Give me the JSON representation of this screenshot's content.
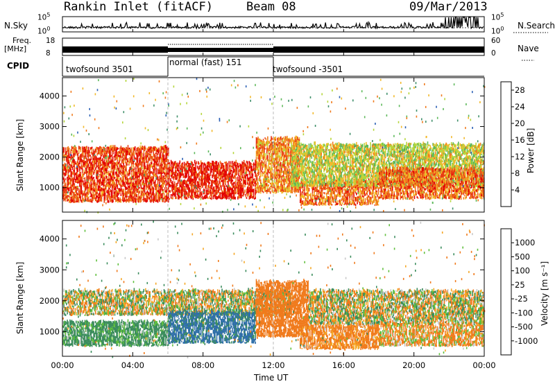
{
  "header": {
    "title": "Rankin Inlet (fitACF)",
    "beam": "Beam 08",
    "date": "09/Mar/2013"
  },
  "noise_panel": {
    "left_label": "N.Sky",
    "right_label": "N.Search",
    "left_ticks": [
      "10^5",
      "10^0"
    ],
    "right_ticks": [
      "10^5",
      "10^0"
    ]
  },
  "freq_panel": {
    "left_label_1": "Freq.",
    "left_label_2": "[MHz]",
    "right_label": "Nave",
    "left_ticks": [
      "18",
      "8"
    ],
    "right_ticks": [
      "60",
      "0"
    ]
  },
  "cpid_panel": {
    "label": "CPID",
    "segments": [
      {
        "start_hour": 0,
        "end_hour": 6,
        "text": "twofsound 3501"
      },
      {
        "start_hour": 6,
        "end_hour": 12,
        "text": "normal (fast) 151"
      },
      {
        "start_hour": 12,
        "end_hour": 24,
        "text": "twofsound -3501"
      }
    ]
  },
  "chart_data": [
    {
      "type": "heatmap",
      "title": "",
      "xlabel": "Time UT",
      "ylabel": "Slant Range [km]",
      "xlim": [
        0,
        24
      ],
      "ylim": [
        200,
        4600
      ],
      "x_ticks": [
        "00:00",
        "04:00",
        "08:00",
        "12:00",
        "16:00",
        "20:00",
        "00:00"
      ],
      "y_ticks": [
        1000,
        2000,
        3000,
        4000
      ],
      "colorbar": {
        "label": "Power [dB]",
        "ticks": [
          4,
          8,
          12,
          16,
          20,
          24,
          28
        ],
        "range": [
          0,
          30
        ],
        "colors": [
          "#0022ff",
          "#2a5fb5",
          "#3f8f6a",
          "#5db85a",
          "#b5d63a",
          "#f2b829",
          "#f07a1c",
          "#e83a14",
          "#e30000"
        ]
      },
      "echo_regions": [
        {
          "t_start": 0.0,
          "t_end": 6.0,
          "range_low": 500,
          "range_high": 2300,
          "dominant_dB": 26
        },
        {
          "t_start": 6.0,
          "t_end": 11.0,
          "range_low": 600,
          "range_high": 1800,
          "dominant_dB": 28
        },
        {
          "t_start": 11.0,
          "t_end": 13.5,
          "range_low": 800,
          "range_high": 2600,
          "dominant_dB": 22
        },
        {
          "t_start": 13.5,
          "t_end": 18.0,
          "range_low": 400,
          "range_high": 1200,
          "dominant_dB": 24
        },
        {
          "t_start": 13.0,
          "t_end": 24.0,
          "range_low": 1000,
          "range_high": 2400,
          "dominant_dB": 16
        },
        {
          "t_start": 18.0,
          "t_end": 24.0,
          "range_low": 600,
          "range_high": 1600,
          "dominant_dB": 24
        }
      ]
    },
    {
      "type": "heatmap",
      "title": "",
      "xlabel": "Time UT",
      "ylabel": "Slant Range [km]",
      "xlim": [
        0,
        24
      ],
      "ylim": [
        200,
        4600
      ],
      "x_ticks": [
        "00:00",
        "04:00",
        "08:00",
        "12:00",
        "16:00",
        "20:00",
        "00:00"
      ],
      "y_ticks": [
        1000,
        2000,
        3000,
        4000
      ],
      "colorbar": {
        "label": "Velocity [m s⁻¹]",
        "ticks": [
          1000,
          500,
          100,
          25,
          -25,
          -100,
          -500,
          -1000
        ],
        "colors": [
          "#1a3fc8",
          "#2f6fa8",
          "#3a8c5c",
          "#5fbf3c",
          "#c8c8c8",
          "#f5a623",
          "#f07a1c",
          "#e83a14",
          "#e30000"
        ]
      },
      "echo_regions": [
        {
          "t_start": 0.0,
          "t_end": 6.0,
          "range_low": 500,
          "range_high": 1300,
          "dominant_velocity": 200
        },
        {
          "t_start": 0.0,
          "t_end": 13.0,
          "range_low": 1500,
          "range_high": 2300,
          "dominant_velocity": 0
        },
        {
          "t_start": 6.0,
          "t_end": 11.0,
          "range_low": 600,
          "range_high": 1600,
          "dominant_velocity": 600
        },
        {
          "t_start": 11.0,
          "t_end": 14.0,
          "range_low": 800,
          "range_high": 2600,
          "dominant_velocity": -300
        },
        {
          "t_start": 13.5,
          "t_end": 18.0,
          "range_low": 400,
          "range_high": 1200,
          "dominant_velocity": -200
        },
        {
          "t_start": 14.0,
          "t_end": 24.0,
          "range_low": 1200,
          "range_high": 2300,
          "dominant_velocity": 0
        },
        {
          "t_start": 18.0,
          "t_end": 24.0,
          "range_low": 500,
          "range_high": 1200,
          "dominant_velocity": -100
        }
      ]
    }
  ]
}
